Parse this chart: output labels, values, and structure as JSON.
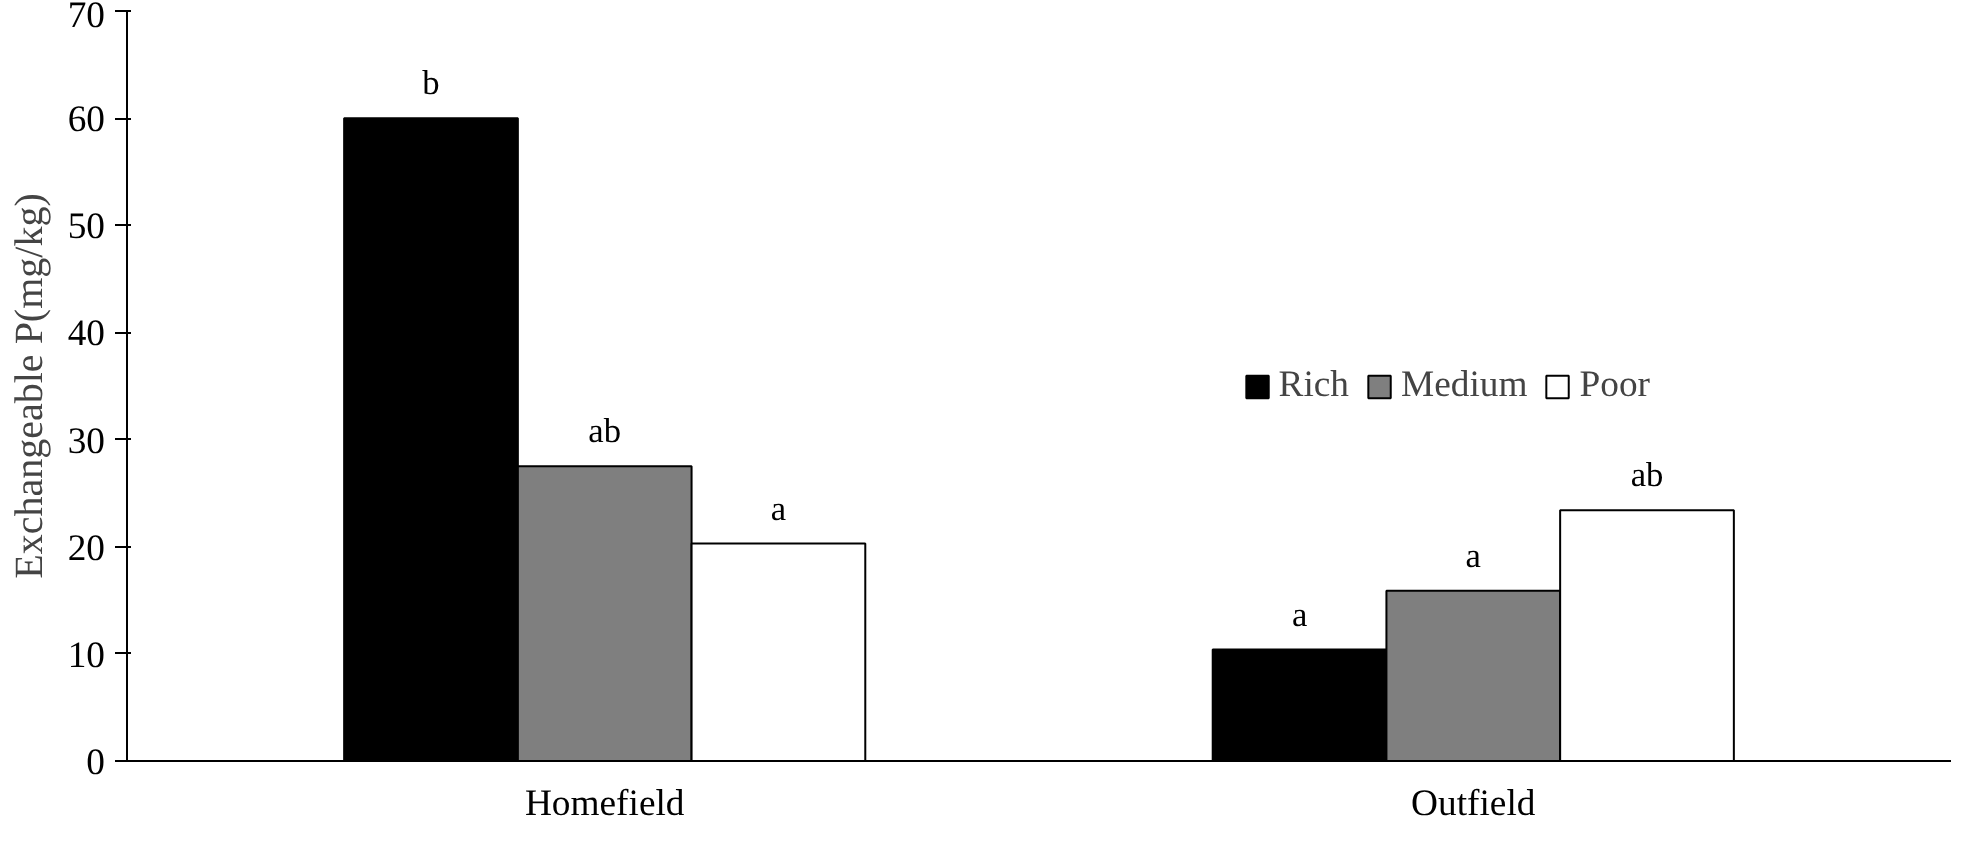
{
  "chart_data": {
    "type": "bar",
    "ylabel": "Exchangeable P(mg/kg)",
    "categories": [
      "Homefield",
      "Outfield"
    ],
    "series": [
      {
        "name": "Rich",
        "color": "#000000",
        "values": [
          60,
          10.4
        ]
      },
      {
        "name": "Medium",
        "color": "#7f7f7f",
        "values": [
          27.5,
          15.9
        ]
      },
      {
        "name": "Poor",
        "color": "#ffffff",
        "values": [
          20.3,
          23.4
        ]
      }
    ],
    "ylim": [
      0,
      70
    ],
    "yticks": [
      0,
      10,
      20,
      30,
      40,
      50,
      60,
      70
    ],
    "grid": false,
    "legend": "right",
    "annotations": [
      "b",
      "ab",
      "a",
      "a",
      "a",
      "ab"
    ]
  }
}
